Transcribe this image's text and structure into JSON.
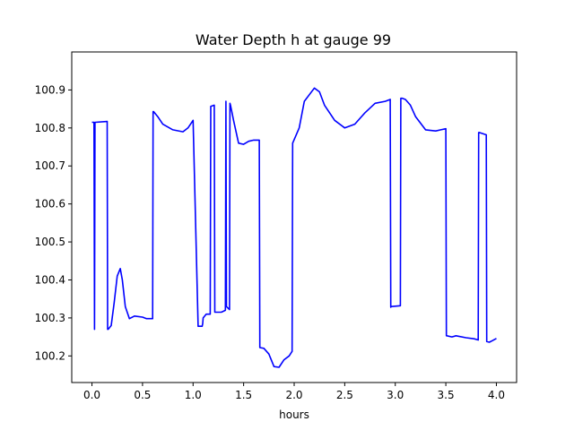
{
  "chart_data": {
    "type": "line",
    "title": "Water Depth h at gauge 99",
    "xlabel": "hours",
    "ylabel": "",
    "xlim": [
      -0.2,
      4.2
    ],
    "ylim": [
      100.13,
      101.0
    ],
    "xticks": [
      0.0,
      0.5,
      1.0,
      1.5,
      2.0,
      2.5,
      3.0,
      3.5,
      4.0
    ],
    "xtick_labels": [
      "0.0",
      "0.5",
      "1.0",
      "1.5",
      "2.0",
      "2.5",
      "3.0",
      "3.5",
      "4.0"
    ],
    "yticks": [
      100.2,
      100.3,
      100.4,
      100.5,
      100.6,
      100.7,
      100.8,
      100.9
    ],
    "ytick_labels": [
      "100.2",
      "100.3",
      "100.4",
      "100.5",
      "100.6",
      "100.7",
      "100.8",
      "100.9"
    ],
    "grid": false,
    "series": [
      {
        "color": "#0000ff",
        "x": [
          0.0,
          0.02,
          0.025,
          0.03,
          0.035,
          0.15,
          0.155,
          0.16,
          0.19,
          0.22,
          0.25,
          0.28,
          0.3,
          0.33,
          0.37,
          0.42,
          0.5,
          0.54,
          0.6,
          0.605,
          0.61,
          0.65,
          0.7,
          0.8,
          0.9,
          0.95,
          1.0,
          1.05,
          1.09,
          1.095,
          1.1,
          1.13,
          1.17,
          1.175,
          1.21,
          1.215,
          1.22,
          1.28,
          1.32,
          1.325,
          1.33,
          1.36,
          1.365,
          1.37,
          1.4,
          1.45,
          1.5,
          1.55,
          1.6,
          1.63,
          1.655,
          1.66,
          1.7,
          1.75,
          1.8,
          1.85,
          1.9,
          1.95,
          1.98,
          1.985,
          2.05,
          2.1,
          2.2,
          2.25,
          2.3,
          2.4,
          2.5,
          2.6,
          2.7,
          2.8,
          2.9,
          2.95,
          2.955,
          2.96,
          3.05,
          3.055,
          3.07,
          3.1,
          3.15,
          3.2,
          3.3,
          3.4,
          3.45,
          3.5,
          3.505,
          3.51,
          3.56,
          3.6,
          3.7,
          3.78,
          3.82,
          3.825,
          3.83,
          3.9,
          3.905,
          3.93,
          3.96,
          4.0
        ],
        "y": [
          100.815,
          100.815,
          100.27,
          100.815,
          100.815,
          100.817,
          100.27,
          100.27,
          100.28,
          100.34,
          100.41,
          100.43,
          100.4,
          100.33,
          100.298,
          100.305,
          100.302,
          100.298,
          100.298,
          100.843,
          100.843,
          100.83,
          100.81,
          100.795,
          100.79,
          100.8,
          100.82,
          100.278,
          100.278,
          100.285,
          100.3,
          100.31,
          100.31,
          100.857,
          100.86,
          100.315,
          100.315,
          100.315,
          100.32,
          100.87,
          100.33,
          100.322,
          100.865,
          100.86,
          100.82,
          100.76,
          100.757,
          100.765,
          100.768,
          100.768,
          100.768,
          100.222,
          100.22,
          100.205,
          100.172,
          100.17,
          100.19,
          100.2,
          100.212,
          100.76,
          100.8,
          100.87,
          100.905,
          100.895,
          100.86,
          100.82,
          100.8,
          100.81,
          100.84,
          100.865,
          100.87,
          100.875,
          100.328,
          100.33,
          100.332,
          100.878,
          100.878,
          100.875,
          100.86,
          100.83,
          100.795,
          100.792,
          100.795,
          100.798,
          100.253,
          100.253,
          100.25,
          100.253,
          100.248,
          100.245,
          100.242,
          100.788,
          100.788,
          100.782,
          100.238,
          100.236,
          100.24,
          100.246
        ]
      }
    ]
  }
}
